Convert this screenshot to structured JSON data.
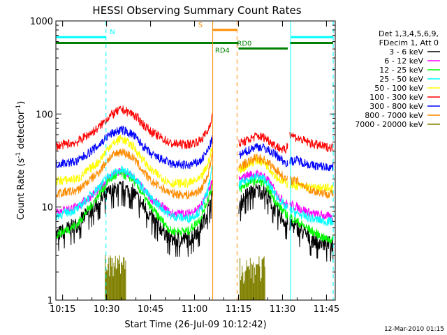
{
  "chart_data": {
    "type": "line",
    "title": "HESSI Observing Summary Count Rates",
    "xlabel": "Start Time (26-Jul-09 10:12:42)",
    "ylabel_main": "Count Rate (s",
    "ylabel_sup": "-1",
    "ylabel_mid": " detector",
    "ylabel_sup2": "-1",
    "ylabel_end": ")",
    "y_log": true,
    "ylim": [
      1,
      1000
    ],
    "xlim_min": [
      12.7,
      108
    ],
    "x_ticks": [
      {
        "min": 15,
        "label": "10:15"
      },
      {
        "min": 30,
        "label": "10:30"
      },
      {
        "min": 45,
        "label": "10:45"
      },
      {
        "min": 60,
        "label": "11:00"
      },
      {
        "min": 75,
        "label": "11:15"
      },
      {
        "min": 90,
        "label": "11:30"
      },
      {
        "min": 105,
        "label": "11:45"
      }
    ],
    "y_ticks": [
      {
        "v": 1,
        "label": "1"
      },
      {
        "v": 10,
        "label": "10"
      },
      {
        "v": 100,
        "label": "100"
      },
      {
        "v": 1000,
        "label": "1000"
      }
    ],
    "legend_header": [
      "Det 1,3,4,5,6,9,",
      "FDecim 1, Att 0"
    ],
    "legend_placement": "right",
    "gaps_min": [
      [
        66.2,
        75
      ],
      [
        91.8,
        92.5
      ]
    ],
    "series": [
      {
        "name": "3 - 6 keV",
        "color": "#000000",
        "peak_x": 35,
        "values": [
          [
            12.7,
            5.0
          ],
          [
            20,
            6.5
          ],
          [
            27,
            11
          ],
          [
            31,
            14.5
          ],
          [
            35,
            16
          ],
          [
            39,
            14.5
          ],
          [
            45,
            8
          ],
          [
            52,
            4.5
          ],
          [
            58,
            4.5
          ],
          [
            62,
            6
          ],
          [
            64.5,
            9
          ],
          [
            66.2,
            13
          ],
          [
            75,
            10
          ],
          [
            78,
            14
          ],
          [
            81,
            15
          ],
          [
            84,
            14.5
          ],
          [
            88,
            9
          ],
          [
            91,
            7
          ],
          [
            95,
            6
          ],
          [
            100,
            4.5
          ],
          [
            105,
            4
          ],
          [
            107.3,
            4
          ]
        ]
      },
      {
        "name": "6 - 12 keV",
        "color": "#ff00ff",
        "peak_x": 35,
        "values": [
          [
            12.7,
            9
          ],
          [
            20,
            10
          ],
          [
            27,
            15
          ],
          [
            31,
            21
          ],
          [
            35,
            24
          ],
          [
            39,
            21
          ],
          [
            45,
            12.5
          ],
          [
            52,
            8.5
          ],
          [
            58,
            8.5
          ],
          [
            62,
            10
          ],
          [
            64.5,
            14
          ],
          [
            66.2,
            20
          ],
          [
            75,
            19
          ],
          [
            78,
            22
          ],
          [
            81,
            22.5
          ],
          [
            84,
            21.5
          ],
          [
            88,
            14
          ],
          [
            91,
            11
          ],
          [
            95,
            10
          ],
          [
            100,
            8.5
          ],
          [
            105,
            8
          ],
          [
            107.3,
            7.5
          ]
        ]
      },
      {
        "name": "12 - 25 keV",
        "color": "#00ff00",
        "peak_x": 35,
        "values": [
          [
            12.7,
            5
          ],
          [
            20,
            6.5
          ],
          [
            27,
            13
          ],
          [
            31,
            20
          ],
          [
            35,
            23
          ],
          [
            39,
            20
          ],
          [
            45,
            10
          ],
          [
            52,
            5.5
          ],
          [
            58,
            5.5
          ],
          [
            62,
            7.5
          ],
          [
            64.5,
            12
          ],
          [
            66.2,
            18
          ],
          [
            75,
            15
          ],
          [
            78,
            18
          ],
          [
            81,
            19.5
          ],
          [
            84,
            18
          ],
          [
            88,
            11
          ],
          [
            91,
            8.5
          ],
          [
            95,
            7
          ],
          [
            100,
            5.5
          ],
          [
            105,
            4.5
          ],
          [
            107.3,
            4.5
          ]
        ]
      },
      {
        "name": "25 - 50 keV",
        "color": "#00ffff",
        "peak_x": 35,
        "values": [
          [
            12.7,
            8
          ],
          [
            20,
            9.5
          ],
          [
            27,
            16
          ],
          [
            31,
            22
          ],
          [
            35,
            25
          ],
          [
            39,
            22
          ],
          [
            45,
            12.5
          ],
          [
            52,
            8
          ],
          [
            58,
            7.5
          ],
          [
            62,
            9
          ],
          [
            64.5,
            15
          ],
          [
            66.2,
            27
          ],
          [
            75,
            17
          ],
          [
            78,
            20
          ],
          [
            81,
            21
          ],
          [
            84,
            20
          ],
          [
            88,
            13
          ],
          [
            91,
            10
          ],
          [
            95,
            8.5
          ],
          [
            100,
            7.5
          ],
          [
            105,
            7
          ],
          [
            107.3,
            7
          ]
        ]
      },
      {
        "name": "50 - 100 keV",
        "color": "#ffff00",
        "peak_x": 35,
        "values": [
          [
            12.7,
            19
          ],
          [
            20,
            20
          ],
          [
            27,
            30
          ],
          [
            31,
            45
          ],
          [
            35,
            55
          ],
          [
            39,
            45
          ],
          [
            45,
            25
          ],
          [
            52,
            18
          ],
          [
            58,
            18
          ],
          [
            62,
            20
          ],
          [
            64.5,
            28
          ],
          [
            66.2,
            45
          ],
          [
            75,
            25
          ],
          [
            78,
            28
          ],
          [
            81,
            32
          ],
          [
            84,
            30
          ],
          [
            88,
            21
          ],
          [
            91,
            18
          ],
          [
            95,
            17
          ],
          [
            100,
            16
          ],
          [
            105,
            16
          ],
          [
            107.3,
            16
          ]
        ]
      },
      {
        "name": "100 - 300 keV",
        "color": "#ff0000",
        "peak_x": 35,
        "values": [
          [
            12.7,
            45
          ],
          [
            20,
            50
          ],
          [
            27,
            70
          ],
          [
            31,
            95
          ],
          [
            35,
            112
          ],
          [
            39,
            100
          ],
          [
            45,
            65
          ],
          [
            52,
            48
          ],
          [
            58,
            47
          ],
          [
            62,
            52
          ],
          [
            64.5,
            65
          ],
          [
            66.2,
            100
          ],
          [
            75,
            48
          ],
          [
            78,
            52
          ],
          [
            81,
            58
          ],
          [
            84,
            56
          ],
          [
            88,
            45
          ],
          [
            91,
            40
          ],
          [
            91.8,
            48
          ],
          [
            92.5,
            62
          ],
          [
            95,
            55
          ],
          [
            100,
            48
          ],
          [
            105,
            44
          ],
          [
            107.3,
            44
          ]
        ]
      },
      {
        "name": "300 - 800 keV",
        "color": "#0000ff",
        "peak_x": 35,
        "values": [
          [
            12.7,
            29
          ],
          [
            20,
            31
          ],
          [
            27,
            45
          ],
          [
            31,
            60
          ],
          [
            35,
            68
          ],
          [
            39,
            60
          ],
          [
            45,
            37
          ],
          [
            52,
            29
          ],
          [
            58,
            28
          ],
          [
            62,
            31
          ],
          [
            64.5,
            40
          ],
          [
            66.2,
            55
          ],
          [
            75,
            35
          ],
          [
            78,
            40
          ],
          [
            81,
            45
          ],
          [
            84,
            43
          ],
          [
            88,
            36
          ],
          [
            91,
            30
          ],
          [
            95,
            32
          ],
          [
            100,
            28
          ],
          [
            105,
            27
          ],
          [
            107.3,
            27
          ]
        ]
      },
      {
        "name": "800 - 7000 keV",
        "color": "#ff8c00",
        "peak_x": 35,
        "values": [
          [
            12.7,
            14
          ],
          [
            20,
            15
          ],
          [
            27,
            23
          ],
          [
            31,
            34
          ],
          [
            35,
            40
          ],
          [
            39,
            34
          ],
          [
            45,
            19
          ],
          [
            52,
            14
          ],
          [
            58,
            13.5
          ],
          [
            62,
            15
          ],
          [
            64.5,
            22
          ],
          [
            66.2,
            36
          ],
          [
            75,
            27
          ],
          [
            78,
            30
          ],
          [
            81,
            34
          ],
          [
            84,
            32
          ],
          [
            88,
            25
          ],
          [
            91,
            20
          ],
          [
            95,
            19
          ],
          [
            100,
            15
          ],
          [
            105,
            14
          ],
          [
            107.3,
            14
          ]
        ]
      },
      {
        "name": "7000 - 20000 keV",
        "color": "#808000",
        "peak_x": 35,
        "values": []
      }
    ],
    "olive_spikes_min": [
      [
        29.5,
        36.5
      ],
      [
        75.5,
        84
      ]
    ],
    "flags": [
      {
        "label": "N",
        "color": "#00ffff",
        "label_x": 32,
        "segments": [
          [
            12.7,
            29.8
          ],
          [
            93,
            107.3
          ]
        ],
        "level": 670
      },
      {
        "label": "S",
        "color": "#ff8c00",
        "label_x": 62,
        "segments": [
          [
            66.2,
            74.5
          ]
        ],
        "level": 800
      },
      {
        "label": "RD0",
        "color": "#008000",
        "label_x": 77,
        "segments": [
          [
            75,
            91.8
          ]
        ],
        "level": 505
      },
      {
        "label": "RD4",
        "color": "#008000",
        "label_x": 69.5,
        "segments": [
          [
            12.7,
            75
          ],
          [
            92.5,
            107.3
          ]
        ],
        "level": 580
      }
    ],
    "vlines": [
      {
        "min": 12.7,
        "color": "#00ffff",
        "dash": false
      },
      {
        "min": 29.8,
        "color": "#00ffff",
        "dash": true
      },
      {
        "min": 66.2,
        "color": "#ff8c00",
        "dash": false
      },
      {
        "min": 74.5,
        "color": "#ff8c00",
        "dash": true
      },
      {
        "min": 92.8,
        "color": "#00ffff",
        "dash": false
      },
      {
        "min": 107.3,
        "color": "#00ffff",
        "dash": true
      }
    ],
    "footer_date": "12-Mar-2010 01:15"
  }
}
